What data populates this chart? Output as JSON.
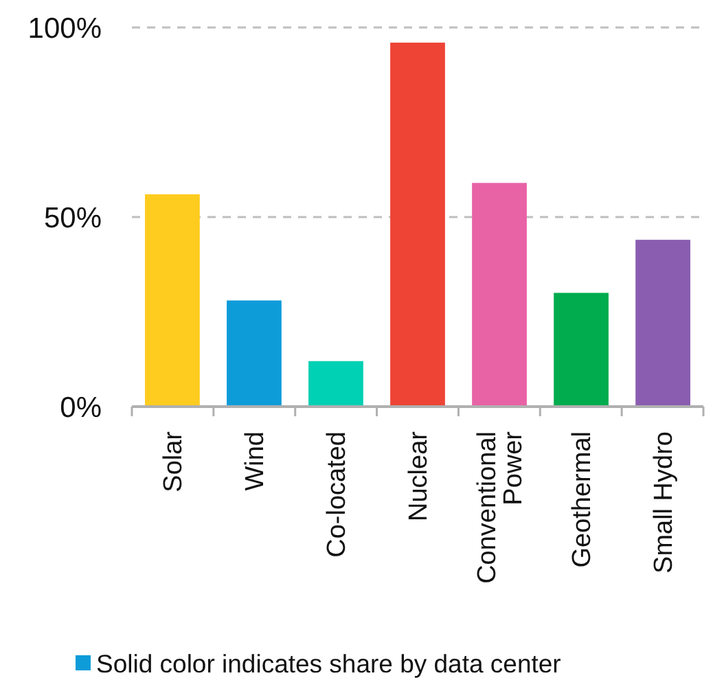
{
  "chart_data": {
    "type": "bar",
    "categories": [
      "Solar",
      "Wind",
      "Co-located",
      "Nuclear",
      "Conventional Power",
      "Geothermal",
      "Small Hydro"
    ],
    "series": [
      {
        "name": "Solid color indicates share by data center",
        "color": "#0e9cd9",
        "colors": [
          "#fecb1f",
          "#0e9cd9",
          "#00d0b3",
          "#ee4436",
          "#e862a6",
          "#00ac4e",
          "#8a5db0"
        ],
        "values": [
          56,
          28,
          12,
          96,
          59,
          30,
          44
        ]
      }
    ],
    "ylim": [
      0,
      100
    ],
    "yticks": [
      {
        "value": 0,
        "label": "0%"
      },
      {
        "value": 50,
        "label": "50%"
      },
      {
        "value": 100,
        "label": "100%"
      }
    ],
    "grid": "y",
    "legend": "bottom"
  }
}
